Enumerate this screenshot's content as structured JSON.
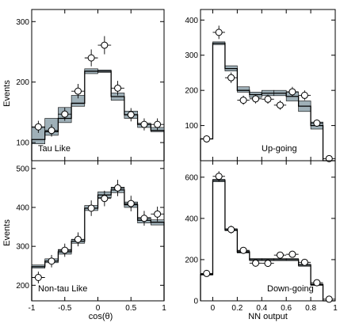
{
  "chart_data": [
    {
      "id": "tau-like",
      "type": "histogram",
      "label": "Tau Like",
      "ylabel": "Events",
      "xlabel": "",
      "xlim": [
        -1,
        1
      ],
      "ylim": [
        70,
        320
      ],
      "xticks": [],
      "yticks": [
        100,
        200,
        300
      ],
      "bin_edges": [
        -1,
        -0.8,
        -0.6,
        -0.4,
        -0.2,
        0,
        0.2,
        0.4,
        0.6,
        0.8,
        1
      ],
      "band": {
        "low": [
          98,
          112,
          133,
          160,
          214,
          216,
          170,
          140,
          125,
          118
        ],
        "high": [
          125,
          140,
          158,
          178,
          222,
          220,
          182,
          152,
          132,
          125
        ]
      },
      "line": [
        105,
        118,
        140,
        165,
        218,
        218,
        176,
        146,
        130,
        120
      ],
      "points": {
        "x": [
          -0.9,
          -0.7,
          -0.5,
          -0.3,
          -0.1,
          0.1,
          0.3,
          0.5,
          0.7,
          0.9
        ],
        "y": [
          126,
          120,
          147,
          185,
          240,
          261,
          190,
          146,
          130,
          130
        ],
        "yerr": [
          10,
          10,
          11,
          12,
          14,
          15,
          12,
          11,
          10,
          10
        ]
      }
    },
    {
      "id": "up-going",
      "type": "histogram",
      "label": "Up-going",
      "ylabel": "",
      "xlabel": "",
      "xlim": [
        -0.1,
        1.0
      ],
      "ylim": [
        0,
        430
      ],
      "xticks": [],
      "yticks": [
        100,
        200,
        300,
        400
      ],
      "bin_edges": [
        -0.1,
        0,
        0.1,
        0.2,
        0.3,
        0.4,
        0.5,
        0.6,
        0.7,
        0.8,
        0.9,
        1.0
      ],
      "band": {
        "low": [
          62,
          330,
          255,
          195,
          180,
          185,
          185,
          170,
          140,
          90,
          0
        ],
        "high": [
          62,
          338,
          270,
          210,
          195,
          200,
          200,
          195,
          170,
          110,
          0
        ]
      },
      "line": [
        62,
        334,
        262,
        200,
        188,
        192,
        192,
        183,
        155,
        100,
        0
      ],
      "points": {
        "x": [
          -0.05,
          0.05,
          0.15,
          0.25,
          0.35,
          0.45,
          0.55,
          0.65,
          0.75,
          0.85,
          0.95
        ],
        "y": [
          62,
          365,
          236,
          172,
          176,
          175,
          158,
          196,
          186,
          107,
          6
        ],
        "yerr": [
          8,
          19,
          15,
          13,
          13,
          13,
          13,
          14,
          14,
          10,
          3
        ]
      }
    },
    {
      "id": "non-tau-like",
      "type": "histogram",
      "label": "Non-tau Like",
      "ylabel": "Events",
      "xlabel": "cos(θ)",
      "xlim": [
        -1,
        1
      ],
      "ylim": [
        160,
        520
      ],
      "xticks": [
        -1,
        -0.5,
        0,
        0.5,
        1
      ],
      "yticks": [
        200,
        300,
        400,
        500
      ],
      "bin_edges": [
        -1,
        -0.8,
        -0.6,
        -0.4,
        -0.2,
        0,
        0.2,
        0.4,
        0.6,
        0.8,
        1
      ],
      "band": {
        "low": [
          244,
          258,
          280,
          308,
          392,
          425,
          438,
          400,
          360,
          355
        ],
        "high": [
          252,
          268,
          292,
          318,
          405,
          440,
          452,
          414,
          374,
          368
        ]
      },
      "line": [
        248,
        262,
        286,
        313,
        398,
        432,
        445,
        407,
        367,
        362
      ],
      "points": {
        "x": [
          -0.9,
          -0.7,
          -0.5,
          -0.3,
          -0.1,
          0.1,
          0.3,
          0.5,
          0.7,
          0.9
        ],
        "y": [
          220,
          262,
          290,
          318,
          398,
          423,
          450,
          410,
          372,
          383
        ],
        "yerr": [
          15,
          16,
          17,
          18,
          20,
          20,
          21,
          20,
          19,
          19
        ]
      }
    },
    {
      "id": "down-going",
      "type": "histogram",
      "label": "Down-going",
      "ylabel": "",
      "xlabel": "NN output",
      "xlim": [
        -0.1,
        1.0
      ],
      "ylim": [
        0,
        680
      ],
      "xticks": [
        0,
        0.2,
        0.4,
        0.6,
        0.8,
        1
      ],
      "yticks": [
        0,
        200,
        400,
        600
      ],
      "bin_edges": [
        -0.1,
        0,
        0.1,
        0.2,
        0.3,
        0.4,
        0.5,
        0.6,
        0.7,
        0.8,
        0.9,
        1.0
      ],
      "band": {
        "low": [
          125,
          578,
          340,
          232,
          195,
          195,
          195,
          195,
          168,
          75,
          0
        ],
        "high": [
          130,
          590,
          350,
          242,
          205,
          205,
          205,
          205,
          178,
          82,
          0
        ]
      },
      "line": [
        128,
        584,
        345,
        237,
        200,
        200,
        200,
        200,
        173,
        78,
        0
      ],
      "points": {
        "x": [
          -0.05,
          0.05,
          0.15,
          0.25,
          0.35,
          0.45,
          0.55,
          0.65,
          0.75,
          0.85,
          0.95
        ],
        "y": [
          133,
          604,
          346,
          245,
          183,
          182,
          222,
          226,
          187,
          88,
          8
        ],
        "yerr": [
          12,
          25,
          19,
          16,
          14,
          14,
          15,
          15,
          14,
          9,
          3
        ]
      }
    }
  ]
}
